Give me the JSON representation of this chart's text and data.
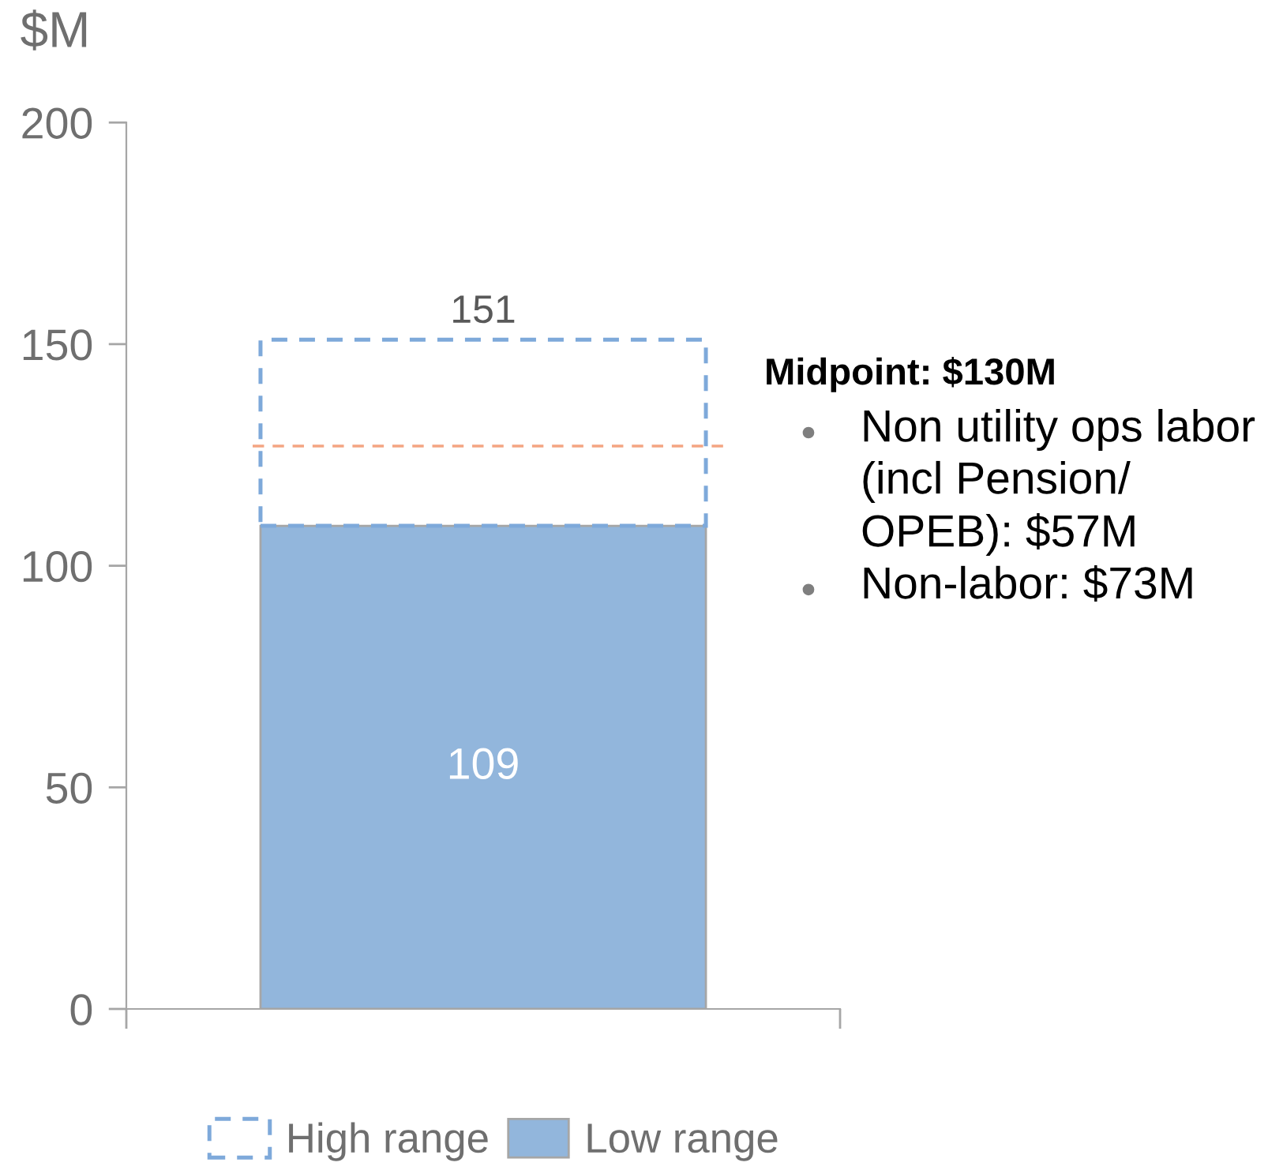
{
  "chart_data": {
    "type": "bar",
    "stacked": true,
    "categories": [
      null
    ],
    "ylabel": "$M",
    "ylim": [
      0,
      200
    ],
    "yticks": [
      0,
      50,
      100,
      150,
      200
    ],
    "series": [
      {
        "name": "Low range",
        "color": "#92b6dc",
        "values": [
          109
        ],
        "value_labels": [
          "109"
        ]
      },
      {
        "name": "High range",
        "color": "#7ea9da",
        "values": [
          42
        ],
        "line_style": "dashed"
      }
    ],
    "totals": [
      "151"
    ],
    "ref_lines": [
      {
        "axis": "y",
        "value": 127,
        "color": "#f4a582",
        "line_style": "dashed"
      }
    ],
    "annotations": [
      "Midpoint: $130M",
      "Non utility ops labor\n(incl Pension/\nOPEB): $57M",
      "Non-labor: $73M"
    ],
    "legend": "bottom"
  }
}
